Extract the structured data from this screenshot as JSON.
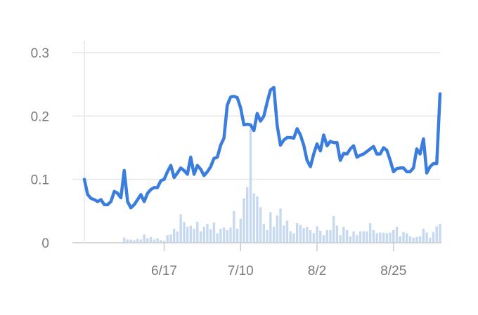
{
  "chart_data": {
    "type": "line",
    "title": "",
    "xlabel": "",
    "ylabel": "",
    "ylim": [
      0,
      0.3
    ],
    "yticks": [
      0,
      0.1,
      0.2,
      0.3
    ],
    "ytick_labels": [
      "0",
      "0.1",
      "0.2",
      "0.3"
    ],
    "xticks": [
      {
        "day": 24,
        "label": "6/17"
      },
      {
        "day": 47,
        "label": "7/10"
      },
      {
        "day": 70,
        "label": "8/2"
      },
      {
        "day": 93,
        "label": "8/25"
      }
    ],
    "grid": true,
    "colors": {
      "line": "#3b7ddd",
      "bars": "#c6d9f1",
      "grid": "#e6e6e6",
      "axis": "#cccccc",
      "text": "#7a7a7a"
    },
    "series": [
      {
        "kind": "line",
        "values": [
          0.1,
          0.076,
          0.07,
          0.068,
          0.065,
          0.068,
          0.06,
          0.06,
          0.065,
          0.081,
          0.078,
          0.071,
          0.114,
          0.065,
          0.055,
          0.06,
          0.068,
          0.076,
          0.065,
          0.078,
          0.084,
          0.087,
          0.087,
          0.098,
          0.1,
          0.112,
          0.122,
          0.103,
          0.11,
          0.118,
          0.114,
          0.108,
          0.135,
          0.108,
          0.122,
          0.116,
          0.106,
          0.112,
          0.12,
          0.133,
          0.135,
          0.154,
          0.165,
          0.217,
          0.23,
          0.231,
          0.229,
          0.213,
          0.186,
          0.187,
          0.186,
          0.177,
          0.204,
          0.192,
          0.2,
          0.222,
          0.241,
          0.245,
          0.185,
          0.154,
          0.162,
          0.166,
          0.166,
          0.165,
          0.18,
          0.17,
          0.154,
          0.13,
          0.12,
          0.14,
          0.156,
          0.145,
          0.17,
          0.153,
          0.16,
          0.158,
          0.158,
          0.13,
          0.141,
          0.14,
          0.148,
          0.153,
          0.135,
          0.138,
          0.14,
          0.144,
          0.148,
          0.152,
          0.14,
          0.14,
          0.15,
          0.146,
          0.13,
          0.112,
          0.117,
          0.118,
          0.118,
          0.112,
          0.112,
          0.118,
          0.148,
          0.14,
          0.164,
          0.11,
          0.12,
          0.125,
          0.125,
          0.235
        ]
      },
      {
        "kind": "bar",
        "values": [
          0.008,
          0.005,
          0.005,
          0.004,
          0.006,
          0.005,
          0.013,
          0.007,
          0.009,
          0.005,
          0.007,
          0.004,
          0.003,
          0.012,
          0.013,
          0.022,
          0.018,
          0.045,
          0.033,
          0.025,
          0.027,
          0.022,
          0.033,
          0.018,
          0.025,
          0.03,
          0.021,
          0.032,
          0.015,
          0.022,
          0.024,
          0.02,
          0.024,
          0.05,
          0.022,
          0.038,
          0.07,
          0.088,
          0.18,
          0.078,
          0.073,
          0.056,
          0.03,
          0.02,
          0.048,
          0.025,
          0.043,
          0.054,
          0.027,
          0.035,
          0.018,
          0.015,
          0.031,
          0.028,
          0.023,
          0.025,
          0.02,
          0.015,
          0.026,
          0.019,
          0.012,
          0.02,
          0.02,
          0.042,
          0.027,
          0.012,
          0.025,
          0.02,
          0.01,
          0.018,
          0.012,
          0.018,
          0.018,
          0.018,
          0.031,
          0.02,
          0.015,
          0.016,
          0.016,
          0.015,
          0.016,
          0.02,
          0.025,
          0.01,
          0.017,
          0.015,
          0.01,
          0.008,
          0.009,
          0.01,
          0.022,
          0.016,
          0.008,
          0.017,
          0.026,
          0.03
        ]
      }
    ]
  }
}
